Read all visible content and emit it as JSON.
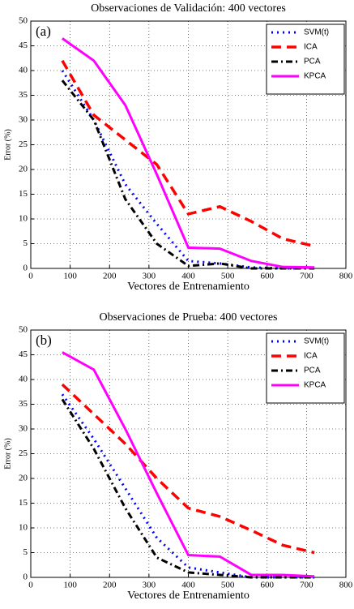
{
  "chart_data": [
    {
      "type": "line",
      "title": "Observaciones de Validación: 400 vectores",
      "annotation": "(a)",
      "xlabel": "Vectores de Entrenamiento",
      "ylabel": "Error (%)",
      "x": [
        80,
        160,
        240,
        320,
        400,
        480,
        560,
        640,
        720
      ],
      "series": [
        {
          "name": "SVM(t)",
          "color": "#0000ff",
          "style": "dotted",
          "values": [
            40,
            30,
            17,
            9,
            1.5,
            1,
            0.2,
            0,
            0
          ]
        },
        {
          "name": "ICA",
          "color": "#ff0000",
          "style": "dashed",
          "values": [
            42,
            31,
            26,
            21,
            11,
            12.5,
            9.5,
            6,
            4.5
          ]
        },
        {
          "name": "PCA",
          "color": "#000000",
          "style": "dashdot",
          "values": [
            38,
            30,
            14,
            5,
            0.5,
            1,
            0,
            0,
            0
          ]
        },
        {
          "name": "KPCA",
          "color": "#ff00ff",
          "style": "solid",
          "values": [
            46.5,
            42,
            33,
            19,
            4.2,
            4,
            1.5,
            0.3,
            0.2
          ]
        }
      ],
      "xlim": [
        0,
        800
      ],
      "xticks": [
        0,
        100,
        200,
        300,
        400,
        500,
        600,
        700,
        800
      ],
      "ylim": [
        0,
        50
      ],
      "yticks": [
        0,
        5,
        10,
        15,
        20,
        25,
        30,
        35,
        40,
        45,
        50
      ],
      "grid": true,
      "legend": "upper-right"
    },
    {
      "type": "line",
      "title": "Observaciones de Prueba: 400 vectores",
      "annotation": "(b)",
      "xlabel": "Vectores de Entrenamiento",
      "ylabel": "Error (%)",
      "x": [
        80,
        160,
        240,
        320,
        400,
        480,
        560,
        640,
        720
      ],
      "series": [
        {
          "name": "SVM(t)",
          "color": "#0000ff",
          "style": "dotted",
          "values": [
            37,
            28,
            18,
            8,
            2,
            1,
            0,
            0,
            0
          ]
        },
        {
          "name": "ICA",
          "color": "#ff0000",
          "style": "dashed",
          "values": [
            39,
            33,
            27,
            20,
            14,
            12.3,
            9.5,
            6.5,
            5
          ]
        },
        {
          "name": "PCA",
          "color": "#000000",
          "style": "dashdot",
          "values": [
            36,
            26,
            14,
            4,
            1,
            0.5,
            0,
            0,
            0
          ]
        },
        {
          "name": "KPCA",
          "color": "#ff00ff",
          "style": "solid",
          "values": [
            45.5,
            42,
            30,
            17,
            4.5,
            4.2,
            0.5,
            0.5,
            0.2
          ]
        }
      ],
      "xlim": [
        0,
        800
      ],
      "xticks": [
        0,
        100,
        200,
        300,
        400,
        500,
        600,
        700,
        800
      ],
      "ylim": [
        0,
        50
      ],
      "yticks": [
        0,
        5,
        10,
        15,
        20,
        25,
        30,
        35,
        40,
        45,
        50
      ],
      "grid": true,
      "legend": "upper-right"
    }
  ]
}
